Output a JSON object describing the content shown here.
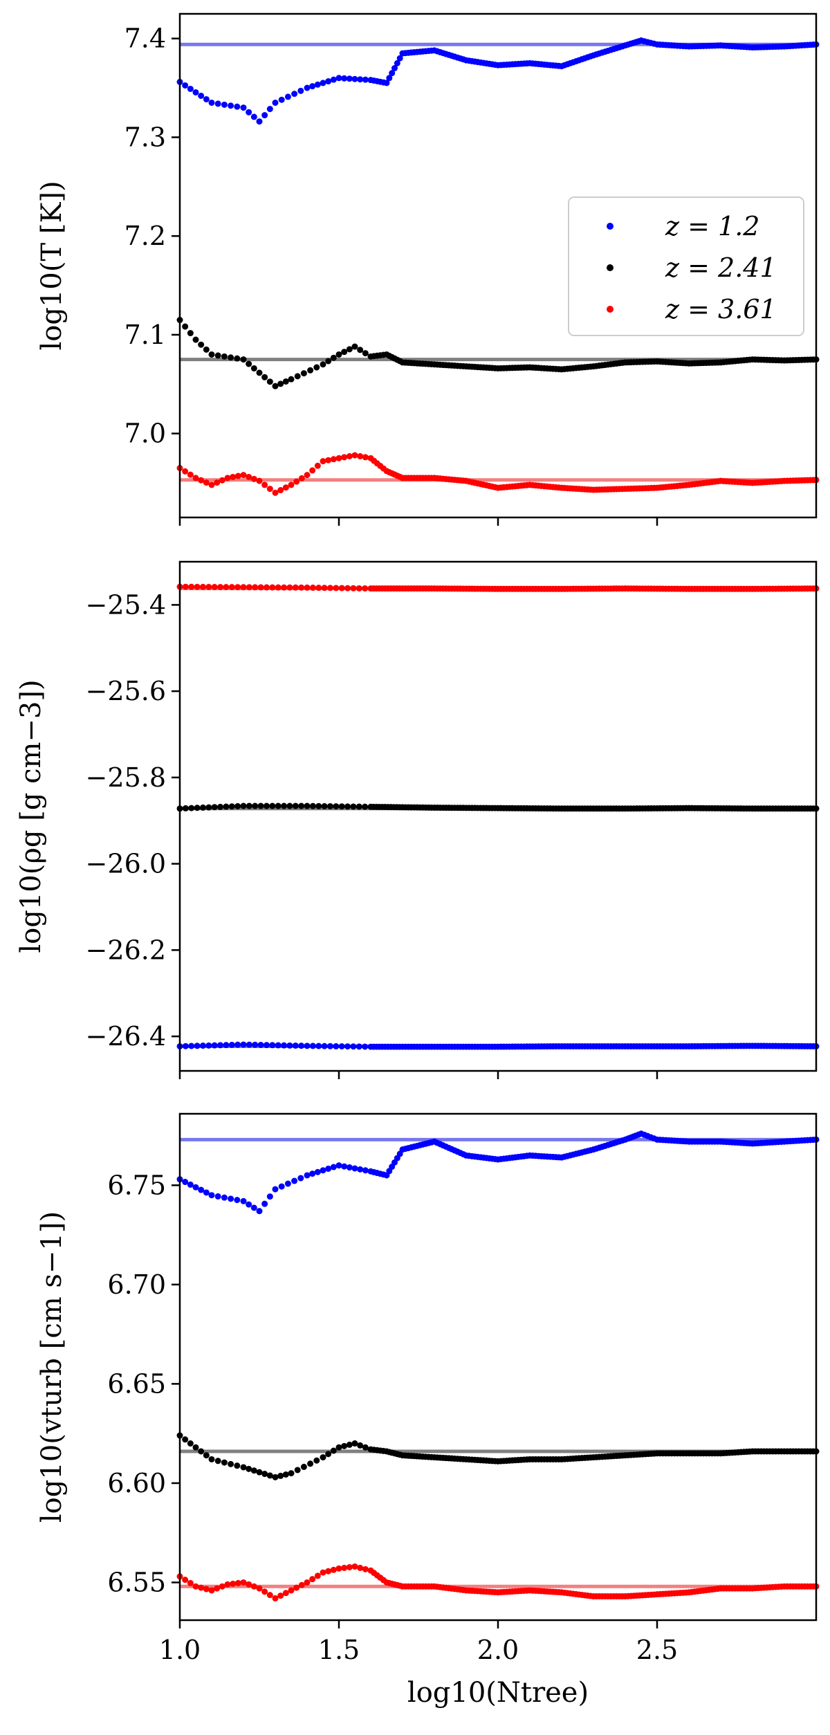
{
  "colors": {
    "z1": "#0000ff",
    "z2": "#000000",
    "z3": "#ff0000",
    "z1_ref": "#7777ee",
    "z2_ref": "#808080",
    "z3_ref": "#f28080"
  },
  "legend": {
    "placement": "right",
    "entries": [
      {
        "label": "z =  1.2",
        "color": "#0000ff"
      },
      {
        "label": "z =  2.41",
        "color": "#000000"
      },
      {
        "label": "z =  3.61",
        "color": "#ff0000"
      }
    ]
  },
  "chart_data": [
    {
      "type": "scatter",
      "ylabel": "log10(T [K])",
      "xlabel": "",
      "xlim": [
        1.0,
        3.0
      ],
      "ylim": [
        6.915,
        7.425
      ],
      "xticks": [
        "1.0",
        "1.5",
        "2.0",
        "2.5"
      ],
      "yticks": [
        "7.0",
        "7.1",
        "7.2",
        "7.3",
        "7.4"
      ],
      "ytick_values": [
        7.0,
        7.1,
        7.2,
        7.3,
        7.4
      ],
      "series": [
        {
          "name": "z =  1.2",
          "color": "#0000ff",
          "reference": 7.394,
          "x": [
            1.0,
            1.1,
            1.2,
            1.25,
            1.3,
            1.4,
            1.5,
            1.6,
            1.65,
            1.7,
            1.8,
            1.9,
            2.0,
            2.1,
            2.2,
            2.3,
            2.4,
            2.45,
            2.5,
            2.6,
            2.7,
            2.8,
            2.9,
            3.0
          ],
          "y": [
            7.356,
            7.335,
            7.33,
            7.316,
            7.335,
            7.35,
            7.36,
            7.358,
            7.355,
            7.385,
            7.388,
            7.378,
            7.373,
            7.375,
            7.372,
            7.383,
            7.393,
            7.398,
            7.394,
            7.392,
            7.393,
            7.391,
            7.392,
            7.394
          ]
        },
        {
          "name": "z =  2.41",
          "color": "#000000",
          "reference": 7.075,
          "x": [
            1.0,
            1.05,
            1.1,
            1.2,
            1.3,
            1.35,
            1.45,
            1.5,
            1.55,
            1.6,
            1.65,
            1.7,
            1.8,
            1.9,
            2.0,
            2.1,
            2.2,
            2.3,
            2.4,
            2.5,
            2.6,
            2.7,
            2.8,
            2.9,
            3.0
          ],
          "y": [
            7.115,
            7.095,
            7.08,
            7.075,
            7.048,
            7.055,
            7.07,
            7.08,
            7.088,
            7.078,
            7.08,
            7.072,
            7.07,
            7.068,
            7.066,
            7.067,
            7.065,
            7.068,
            7.072,
            7.073,
            7.071,
            7.072,
            7.075,
            7.074,
            7.075
          ]
        },
        {
          "name": "z =  3.61",
          "color": "#ff0000",
          "reference": 6.953,
          "x": [
            1.0,
            1.05,
            1.1,
            1.15,
            1.2,
            1.25,
            1.3,
            1.35,
            1.4,
            1.45,
            1.5,
            1.55,
            1.6,
            1.65,
            1.7,
            1.8,
            1.9,
            2.0,
            2.1,
            2.2,
            2.3,
            2.4,
            2.5,
            2.6,
            2.7,
            2.8,
            2.9,
            3.0
          ],
          "y": [
            6.965,
            6.955,
            6.948,
            6.955,
            6.958,
            6.952,
            6.94,
            6.948,
            6.958,
            6.972,
            6.975,
            6.978,
            6.975,
            6.962,
            6.955,
            6.955,
            6.952,
            6.945,
            6.948,
            6.945,
            6.943,
            6.944,
            6.945,
            6.948,
            6.952,
            6.95,
            6.952,
            6.953
          ]
        }
      ]
    },
    {
      "type": "scatter",
      "ylabel": "log10(ρg [g cm−3])",
      "xlabel": "",
      "xlim": [
        1.0,
        3.0
      ],
      "ylim": [
        -26.48,
        -25.3
      ],
      "xticks": [
        "1.0",
        "1.5",
        "2.0",
        "2.5"
      ],
      "yticks": [
        "−25.4",
        "−25.6",
        "−25.8",
        "−26.0",
        "−26.2",
        "−26.4"
      ],
      "ytick_values": [
        -25.4,
        -25.6,
        -25.8,
        -26.0,
        -26.2,
        -26.4
      ],
      "series": [
        {
          "name": "z =  3.61",
          "color": "#ff0000",
          "reference": -25.362,
          "x": [
            1.0,
            1.2,
            1.4,
            1.6,
            1.8,
            2.0,
            2.2,
            2.4,
            2.6,
            2.8,
            3.0
          ],
          "y": [
            -25.358,
            -25.359,
            -25.36,
            -25.362,
            -25.362,
            -25.363,
            -25.363,
            -25.362,
            -25.363,
            -25.363,
            -25.362
          ]
        },
        {
          "name": "z =  2.41",
          "color": "#000000",
          "reference": -25.872,
          "x": [
            1.0,
            1.2,
            1.4,
            1.6,
            1.8,
            2.0,
            2.2,
            2.4,
            2.6,
            2.8,
            3.0
          ],
          "y": [
            -25.872,
            -25.866,
            -25.866,
            -25.868,
            -25.87,
            -25.871,
            -25.872,
            -25.872,
            -25.871,
            -25.872,
            -25.872
          ]
        },
        {
          "name": "z =  1.2",
          "color": "#0000ff",
          "reference": -26.423,
          "x": [
            1.0,
            1.2,
            1.4,
            1.6,
            1.8,
            2.0,
            2.2,
            2.4,
            2.6,
            2.8,
            3.0
          ],
          "y": [
            -26.423,
            -26.419,
            -26.422,
            -26.424,
            -26.424,
            -26.424,
            -26.423,
            -26.423,
            -26.423,
            -26.422,
            -26.423
          ]
        }
      ]
    },
    {
      "type": "scatter",
      "ylabel": "log10(vturb [cm s−1])",
      "xlabel": "log10(Ntree)",
      "xlim": [
        1.0,
        3.0
      ],
      "ylim": [
        6.531,
        6.786
      ],
      "xticks": [
        "1.0",
        "1.5",
        "2.0",
        "2.5"
      ],
      "yticks": [
        "6.55",
        "6.60",
        "6.65",
        "6.70",
        "6.75"
      ],
      "ytick_values": [
        6.55,
        6.6,
        6.65,
        6.7,
        6.75
      ],
      "series": [
        {
          "name": "z =  1.2",
          "color": "#0000ff",
          "reference": 6.773,
          "x": [
            1.0,
            1.1,
            1.2,
            1.25,
            1.3,
            1.4,
            1.5,
            1.6,
            1.65,
            1.7,
            1.8,
            1.9,
            2.0,
            2.1,
            2.2,
            2.3,
            2.4,
            2.45,
            2.5,
            2.6,
            2.7,
            2.8,
            2.9,
            3.0
          ],
          "y": [
            6.753,
            6.745,
            6.742,
            6.737,
            6.748,
            6.755,
            6.76,
            6.757,
            6.755,
            6.768,
            6.772,
            6.765,
            6.763,
            6.765,
            6.764,
            6.768,
            6.773,
            6.776,
            6.773,
            6.772,
            6.772,
            6.771,
            6.772,
            6.773
          ]
        },
        {
          "name": "z =  2.41",
          "color": "#000000",
          "reference": 6.616,
          "x": [
            1.0,
            1.05,
            1.1,
            1.2,
            1.3,
            1.35,
            1.45,
            1.5,
            1.55,
            1.6,
            1.65,
            1.7,
            1.8,
            1.9,
            2.0,
            2.1,
            2.2,
            2.3,
            2.4,
            2.5,
            2.6,
            2.7,
            2.8,
            2.9,
            3.0
          ],
          "y": [
            6.624,
            6.618,
            6.612,
            6.608,
            6.603,
            6.605,
            6.613,
            6.618,
            6.62,
            6.617,
            6.616,
            6.614,
            6.613,
            6.612,
            6.611,
            6.612,
            6.612,
            6.613,
            6.614,
            6.615,
            6.615,
            6.615,
            6.616,
            6.616,
            6.616
          ]
        },
        {
          "name": "z =  3.61",
          "color": "#ff0000",
          "reference": 6.548,
          "x": [
            1.0,
            1.05,
            1.1,
            1.15,
            1.2,
            1.25,
            1.3,
            1.35,
            1.4,
            1.45,
            1.5,
            1.55,
            1.6,
            1.65,
            1.7,
            1.8,
            1.9,
            2.0,
            2.1,
            2.2,
            2.3,
            2.4,
            2.5,
            2.6,
            2.7,
            2.8,
            2.9,
            3.0
          ],
          "y": [
            6.553,
            6.548,
            6.546,
            6.549,
            6.55,
            6.547,
            6.542,
            6.546,
            6.55,
            6.555,
            6.557,
            6.558,
            6.556,
            6.55,
            6.548,
            6.548,
            6.546,
            6.545,
            6.546,
            6.545,
            6.543,
            6.543,
            6.544,
            6.545,
            6.547,
            6.547,
            6.548,
            6.548
          ]
        }
      ]
    }
  ]
}
